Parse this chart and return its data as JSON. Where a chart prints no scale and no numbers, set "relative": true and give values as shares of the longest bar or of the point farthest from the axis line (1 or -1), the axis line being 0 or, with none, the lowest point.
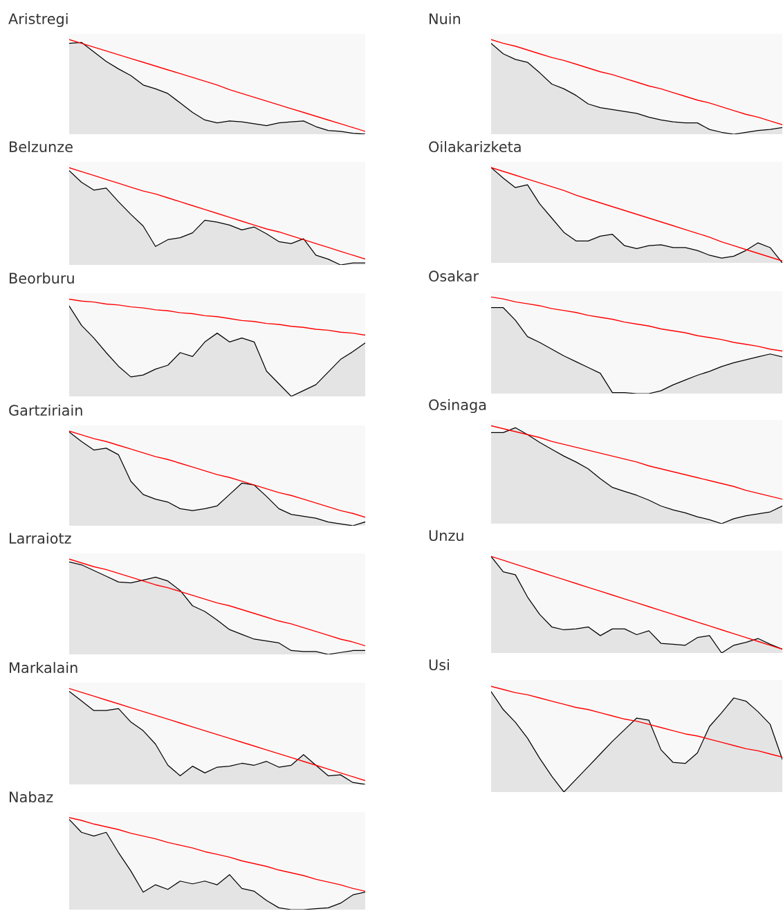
{
  "chart_data": [
    {
      "type": "area",
      "title": "Aristregi",
      "relative": true,
      "categories": [
        null,
        null,
        null,
        null,
        null,
        null,
        null,
        null,
        null,
        null,
        null,
        null,
        null,
        null,
        null,
        null,
        null,
        null,
        null,
        null,
        null,
        null,
        null,
        null,
        null
      ],
      "series": [
        {
          "type": "area",
          "color": "#e4e4e4",
          "values": [
            0.96,
            0.97,
            0.87,
            0.77,
            0.69,
            0.62,
            0.52,
            0.48,
            0.43,
            0.33,
            0.23,
            0.15,
            0.12,
            0.14,
            0.13,
            0.11,
            0.09,
            0.12,
            0.13,
            0.14,
            0.08,
            0.04,
            0.03,
            0.01,
            0.0
          ]
        },
        {
          "type": "line",
          "color": "#ff0000",
          "values": [
            1.0,
            0.96,
            0.92,
            0.88,
            0.84,
            0.8,
            0.76,
            0.72,
            0.68,
            0.64,
            0.6,
            0.56,
            0.52,
            0.47,
            0.43,
            0.39,
            0.35,
            0.31,
            0.27,
            0.23,
            0.19,
            0.15,
            0.11,
            0.07,
            0.03
          ]
        }
      ]
    },
    {
      "type": "area",
      "title": "Nuin",
      "relative": true,
      "categories": [
        null,
        null,
        null,
        null,
        null,
        null,
        null,
        null,
        null,
        null,
        null,
        null,
        null,
        null,
        null,
        null,
        null,
        null,
        null,
        null,
        null,
        null,
        null,
        null,
        null
      ],
      "series": [
        {
          "type": "area",
          "color": "#e4e4e4",
          "values": [
            0.96,
            0.85,
            0.79,
            0.76,
            0.65,
            0.53,
            0.48,
            0.41,
            0.32,
            0.28,
            0.26,
            0.24,
            0.22,
            0.18,
            0.15,
            0.13,
            0.12,
            0.12,
            0.05,
            0.02,
            0.0,
            0.02,
            0.04,
            0.05,
            0.07
          ]
        },
        {
          "type": "line",
          "color": "#ff0000",
          "values": [
            1.0,
            0.96,
            0.93,
            0.89,
            0.85,
            0.81,
            0.78,
            0.74,
            0.7,
            0.66,
            0.63,
            0.59,
            0.55,
            0.51,
            0.48,
            0.44,
            0.4,
            0.36,
            0.33,
            0.29,
            0.25,
            0.21,
            0.18,
            0.14,
            0.1
          ]
        }
      ]
    },
    {
      "type": "area",
      "title": "Belzunze",
      "relative": true,
      "categories": [
        null,
        null,
        null,
        null,
        null,
        null,
        null,
        null,
        null,
        null,
        null,
        null,
        null,
        null,
        null,
        null,
        null,
        null,
        null,
        null,
        null,
        null,
        null,
        null,
        null
      ],
      "series": [
        {
          "type": "area",
          "color": "#e4e4e4",
          "values": [
            0.97,
            0.85,
            0.77,
            0.79,
            0.65,
            0.52,
            0.4,
            0.19,
            0.26,
            0.28,
            0.33,
            0.46,
            0.44,
            0.41,
            0.36,
            0.39,
            0.32,
            0.24,
            0.22,
            0.27,
            0.1,
            0.06,
            0.0,
            0.02,
            0.02
          ]
        },
        {
          "type": "line",
          "color": "#ff0000",
          "values": [
            1.0,
            0.96,
            0.92,
            0.88,
            0.84,
            0.8,
            0.76,
            0.73,
            0.69,
            0.65,
            0.61,
            0.57,
            0.53,
            0.49,
            0.45,
            0.41,
            0.37,
            0.34,
            0.3,
            0.26,
            0.22,
            0.18,
            0.14,
            0.1,
            0.06
          ]
        }
      ]
    },
    {
      "type": "area",
      "title": "Oilakarizketa",
      "relative": true,
      "categories": [
        null,
        null,
        null,
        null,
        null,
        null,
        null,
        null,
        null,
        null,
        null,
        null,
        null,
        null,
        null,
        null,
        null,
        null,
        null,
        null,
        null,
        null,
        null,
        null,
        null
      ],
      "series": [
        {
          "type": "area",
          "color": "#e4e4e4",
          "values": [
            1.0,
            0.89,
            0.79,
            0.82,
            0.62,
            0.47,
            0.32,
            0.23,
            0.23,
            0.28,
            0.3,
            0.18,
            0.15,
            0.18,
            0.19,
            0.16,
            0.16,
            0.13,
            0.08,
            0.05,
            0.07,
            0.13,
            0.21,
            0.16,
            0.0
          ]
        },
        {
          "type": "line",
          "color": "#ff0000",
          "values": [
            1.0,
            0.96,
            0.92,
            0.88,
            0.84,
            0.8,
            0.76,
            0.71,
            0.67,
            0.63,
            0.59,
            0.55,
            0.51,
            0.47,
            0.43,
            0.39,
            0.35,
            0.31,
            0.27,
            0.22,
            0.18,
            0.14,
            0.1,
            0.06,
            0.02
          ]
        }
      ]
    },
    {
      "type": "area",
      "title": "Beorburu",
      "relative": true,
      "categories": [
        null,
        null,
        null,
        null,
        null,
        null,
        null,
        null,
        null,
        null,
        null,
        null,
        null,
        null,
        null,
        null,
        null,
        null,
        null,
        null,
        null,
        null,
        null,
        null,
        null
      ],
      "series": [
        {
          "type": "area",
          "color": "#e4e4e4",
          "values": [
            0.93,
            0.73,
            0.6,
            0.45,
            0.31,
            0.2,
            0.22,
            0.28,
            0.32,
            0.45,
            0.41,
            0.56,
            0.65,
            0.56,
            0.6,
            0.56,
            0.26,
            0.13,
            0.0,
            0.06,
            0.12,
            0.25,
            0.38,
            0.46,
            0.55
          ]
        },
        {
          "type": "line",
          "color": "#ff0000",
          "values": [
            1.0,
            0.98,
            0.97,
            0.95,
            0.94,
            0.92,
            0.91,
            0.89,
            0.88,
            0.86,
            0.85,
            0.83,
            0.82,
            0.8,
            0.78,
            0.77,
            0.75,
            0.74,
            0.72,
            0.71,
            0.69,
            0.68,
            0.66,
            0.65,
            0.63
          ]
        }
      ]
    },
    {
      "type": "area",
      "title": "Osakar",
      "relative": true,
      "categories": [
        null,
        null,
        null,
        null,
        null,
        null,
        null,
        null,
        null,
        null,
        null,
        null,
        null,
        null,
        null,
        null,
        null,
        null,
        null,
        null,
        null,
        null,
        null,
        null,
        null
      ],
      "series": [
        {
          "type": "area",
          "color": "#e4e4e4",
          "values": [
            0.89,
            0.89,
            0.76,
            0.59,
            0.53,
            0.46,
            0.39,
            0.33,
            0.27,
            0.21,
            0.01,
            0.01,
            0.0,
            0.0,
            0.03,
            0.09,
            0.14,
            0.19,
            0.23,
            0.28,
            0.32,
            0.35,
            0.38,
            0.41,
            0.38
          ]
        },
        {
          "type": "line",
          "color": "#ff0000",
          "values": [
            1.0,
            0.98,
            0.95,
            0.93,
            0.91,
            0.88,
            0.86,
            0.84,
            0.81,
            0.79,
            0.77,
            0.74,
            0.72,
            0.7,
            0.67,
            0.65,
            0.63,
            0.6,
            0.58,
            0.56,
            0.53,
            0.51,
            0.49,
            0.46,
            0.44
          ]
        }
      ]
    },
    {
      "type": "area",
      "title": "Gartziriain",
      "relative": true,
      "categories": [
        null,
        null,
        null,
        null,
        null,
        null,
        null,
        null,
        null,
        null,
        null,
        null,
        null,
        null,
        null,
        null,
        null,
        null,
        null,
        null,
        null,
        null,
        null,
        null,
        null
      ],
      "series": [
        {
          "type": "area",
          "color": "#e4e4e4",
          "values": [
            0.99,
            0.89,
            0.8,
            0.82,
            0.75,
            0.47,
            0.33,
            0.28,
            0.25,
            0.18,
            0.16,
            0.18,
            0.21,
            0.33,
            0.45,
            0.43,
            0.31,
            0.18,
            0.12,
            0.1,
            0.08,
            0.04,
            0.02,
            0.0,
            0.04
          ]
        },
        {
          "type": "line",
          "color": "#ff0000",
          "values": [
            1.0,
            0.96,
            0.92,
            0.89,
            0.85,
            0.81,
            0.77,
            0.73,
            0.7,
            0.66,
            0.62,
            0.58,
            0.54,
            0.51,
            0.47,
            0.43,
            0.39,
            0.35,
            0.32,
            0.28,
            0.24,
            0.2,
            0.16,
            0.13,
            0.09
          ]
        }
      ]
    },
    {
      "type": "area",
      "title": "Osinaga",
      "relative": true,
      "categories": [
        null,
        null,
        null,
        null,
        null,
        null,
        null,
        null,
        null,
        null,
        null,
        null,
        null,
        null,
        null,
        null,
        null,
        null,
        null,
        null,
        null,
        null,
        null,
        null,
        null
      ],
      "series": [
        {
          "type": "area",
          "color": "#e4e4e4",
          "values": [
            0.93,
            0.93,
            0.98,
            0.91,
            0.83,
            0.76,
            0.69,
            0.63,
            0.56,
            0.46,
            0.37,
            0.33,
            0.29,
            0.24,
            0.18,
            0.14,
            0.11,
            0.07,
            0.04,
            0.0,
            0.05,
            0.08,
            0.1,
            0.12,
            0.18
          ]
        },
        {
          "type": "line",
          "color": "#ff0000",
          "values": [
            1.0,
            0.97,
            0.94,
            0.91,
            0.88,
            0.84,
            0.81,
            0.78,
            0.75,
            0.72,
            0.69,
            0.66,
            0.63,
            0.59,
            0.56,
            0.53,
            0.5,
            0.47,
            0.44,
            0.41,
            0.38,
            0.34,
            0.31,
            0.28,
            0.25
          ]
        }
      ]
    },
    {
      "type": "area",
      "title": "Larraiotz",
      "relative": true,
      "categories": [
        null,
        null,
        null,
        null,
        null,
        null,
        null,
        null,
        null,
        null,
        null,
        null,
        null,
        null,
        null,
        null,
        null,
        null,
        null,
        null,
        null,
        null,
        null,
        null,
        null
      ],
      "series": [
        {
          "type": "area",
          "color": "#e4e4e4",
          "values": [
            0.97,
            0.94,
            0.88,
            0.82,
            0.76,
            0.75,
            0.78,
            0.81,
            0.77,
            0.67,
            0.51,
            0.45,
            0.36,
            0.26,
            0.21,
            0.16,
            0.14,
            0.12,
            0.04,
            0.03,
            0.03,
            0.0,
            0.02,
            0.04,
            0.04
          ]
        },
        {
          "type": "line",
          "color": "#ff0000",
          "values": [
            1.0,
            0.96,
            0.92,
            0.89,
            0.85,
            0.81,
            0.77,
            0.73,
            0.7,
            0.66,
            0.62,
            0.58,
            0.54,
            0.51,
            0.47,
            0.43,
            0.39,
            0.35,
            0.32,
            0.28,
            0.24,
            0.2,
            0.16,
            0.13,
            0.09
          ]
        }
      ]
    },
    {
      "type": "area",
      "title": "Unzu",
      "relative": true,
      "categories": [
        null,
        null,
        null,
        null,
        null,
        null,
        null,
        null,
        null,
        null,
        null,
        null,
        null,
        null,
        null,
        null,
        null,
        null,
        null,
        null,
        null,
        null,
        null,
        null,
        null
      ],
      "series": [
        {
          "type": "area",
          "color": "#e4e4e4",
          "values": [
            1.0,
            0.84,
            0.81,
            0.58,
            0.4,
            0.27,
            0.24,
            0.25,
            0.27,
            0.18,
            0.25,
            0.25,
            0.19,
            0.23,
            0.1,
            0.09,
            0.08,
            0.16,
            0.18,
            0.0,
            0.08,
            0.11,
            0.15,
            0.09,
            0.04
          ]
        },
        {
          "type": "line",
          "color": "#ff0000",
          "values": [
            1.0,
            0.96,
            0.92,
            0.88,
            0.84,
            0.8,
            0.76,
            0.72,
            0.68,
            0.64,
            0.6,
            0.56,
            0.52,
            0.48,
            0.44,
            0.4,
            0.36,
            0.32,
            0.28,
            0.24,
            0.2,
            0.16,
            0.12,
            0.08,
            0.04
          ]
        }
      ]
    },
    {
      "type": "area",
      "title": "Markalain",
      "relative": true,
      "categories": [
        null,
        null,
        null,
        null,
        null,
        null,
        null,
        null,
        null,
        null,
        null,
        null,
        null,
        null,
        null,
        null,
        null,
        null,
        null,
        null,
        null,
        null,
        null,
        null,
        null
      ],
      "series": [
        {
          "type": "area",
          "color": "#e4e4e4",
          "values": [
            0.97,
            0.87,
            0.77,
            0.77,
            0.79,
            0.65,
            0.56,
            0.42,
            0.2,
            0.09,
            0.19,
            0.12,
            0.18,
            0.19,
            0.22,
            0.2,
            0.24,
            0.18,
            0.2,
            0.31,
            0.2,
            0.09,
            0.1,
            0.02,
            0.0
          ]
        },
        {
          "type": "line",
          "color": "#ff0000",
          "values": [
            1.0,
            0.96,
            0.92,
            0.88,
            0.84,
            0.8,
            0.76,
            0.72,
            0.68,
            0.64,
            0.6,
            0.56,
            0.52,
            0.48,
            0.44,
            0.4,
            0.36,
            0.32,
            0.28,
            0.24,
            0.2,
            0.16,
            0.12,
            0.08,
            0.04
          ]
        }
      ]
    },
    {
      "type": "area",
      "title": "Usi",
      "relative": true,
      "categories": [
        null,
        null,
        null,
        null,
        null,
        null,
        null,
        null,
        null,
        null,
        null,
        null,
        null,
        null,
        null,
        null,
        null,
        null,
        null,
        null,
        null,
        null,
        null,
        null,
        null
      ],
      "series": [
        {
          "type": "area",
          "color": "#e4e4e4",
          "values": [
            0.95,
            0.78,
            0.66,
            0.51,
            0.32,
            0.15,
            0.0,
            0.12,
            0.24,
            0.36,
            0.48,
            0.59,
            0.7,
            0.68,
            0.4,
            0.28,
            0.27,
            0.37,
            0.62,
            0.75,
            0.89,
            0.86,
            0.76,
            0.64,
            0.31
          ]
        },
        {
          "type": "line",
          "color": "#ff0000",
          "values": [
            1.0,
            0.97,
            0.94,
            0.92,
            0.89,
            0.86,
            0.83,
            0.8,
            0.78,
            0.75,
            0.72,
            0.69,
            0.67,
            0.64,
            0.61,
            0.58,
            0.55,
            0.53,
            0.5,
            0.47,
            0.44,
            0.41,
            0.39,
            0.36,
            0.33
          ]
        }
      ]
    },
    {
      "type": "area",
      "title": "Nabaz",
      "relative": true,
      "categories": [
        null,
        null,
        null,
        null,
        null,
        null,
        null,
        null,
        null,
        null,
        null,
        null,
        null,
        null,
        null,
        null,
        null,
        null,
        null,
        null,
        null,
        null,
        null,
        null,
        null
      ],
      "series": [
        {
          "type": "area",
          "color": "#e4e4e4",
          "values": [
            0.98,
            0.84,
            0.8,
            0.84,
            0.62,
            0.42,
            0.19,
            0.27,
            0.22,
            0.31,
            0.28,
            0.31,
            0.27,
            0.38,
            0.23,
            0.2,
            0.1,
            0.02,
            0.0,
            0.0,
            0.01,
            0.02,
            0.07,
            0.16,
            0.19
          ]
        },
        {
          "type": "line",
          "color": "#ff0000",
          "values": [
            1.0,
            0.97,
            0.93,
            0.9,
            0.87,
            0.83,
            0.8,
            0.77,
            0.73,
            0.7,
            0.67,
            0.63,
            0.6,
            0.57,
            0.53,
            0.5,
            0.47,
            0.43,
            0.4,
            0.37,
            0.33,
            0.3,
            0.27,
            0.23,
            0.2
          ]
        }
      ]
    }
  ]
}
